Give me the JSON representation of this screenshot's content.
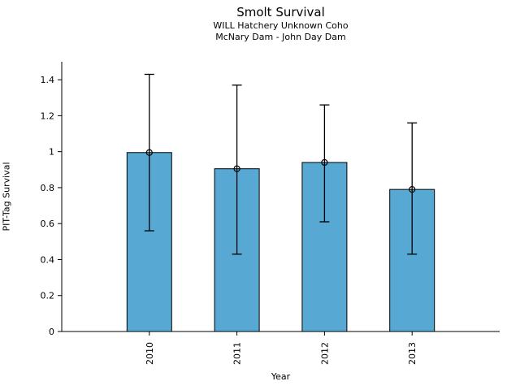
{
  "chart_data": {
    "type": "bar",
    "title": "Smolt Survival",
    "subtitle_line1": "WILL Hatchery Unknown Coho",
    "subtitle_line2": "McNary Dam - John Day Dam",
    "xlabel": "Year",
    "ylabel": "PIT-Tag Survival",
    "categories": [
      "2010",
      "2011",
      "2012",
      "2013"
    ],
    "values": [
      0.995,
      0.905,
      0.94,
      0.79
    ],
    "error_upper": [
      1.43,
      1.37,
      1.26,
      1.16
    ],
    "error_lower": [
      0.56,
      0.43,
      0.61,
      0.43
    ],
    "ytick_values": [
      0,
      0.2,
      0.4,
      0.6,
      0.8,
      1,
      1.2,
      1.4
    ],
    "ytick_labels": [
      "0",
      "0.2",
      "0.4",
      "0.6",
      "0.8",
      "1",
      "1.2",
      "1.4"
    ],
    "ylim": [
      0,
      1.5
    ],
    "grid": "off",
    "legend": "none",
    "bar_color": "#57A9D4",
    "bar_edge_color": "#000000",
    "error_color": "#000000",
    "marker": "open-circle"
  }
}
